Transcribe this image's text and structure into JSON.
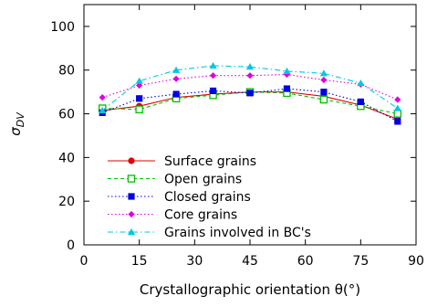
{
  "chart_data": {
    "type": "line",
    "xlabel": "Crystallographic orientation θ(°)",
    "ylabel": "σ_DV",
    "ylabel_main": "σ",
    "ylabel_sub": "DV",
    "xlim": [
      0,
      90
    ],
    "ylim": [
      0,
      110
    ],
    "x_ticks": [
      0,
      15,
      30,
      45,
      60,
      75,
      90
    ],
    "y_ticks": [
      0,
      20,
      40,
      60,
      80,
      100
    ],
    "grid": false,
    "legend_position": "bottom-left",
    "x": [
      5,
      15,
      25,
      35,
      45,
      55,
      65,
      75,
      85
    ],
    "series": [
      {
        "name": "Surface grains",
        "marker": "circle",
        "color": "#e00000",
        "dash": "solid",
        "values": [
          61.5,
          63.5,
          67.5,
          69.0,
          70.0,
          70.0,
          68.0,
          64.0,
          57.5
        ]
      },
      {
        "name": "Open grains",
        "marker": "square-open",
        "color": "#00c000",
        "dash": "dashed",
        "values": [
          62.5,
          62.0,
          67.0,
          68.5,
          70.0,
          69.5,
          66.5,
          63.5,
          60.0
        ]
      },
      {
        "name": "Closed grains",
        "marker": "square",
        "color": "#0000e0",
        "dash": "dotted",
        "values": [
          60.5,
          67.0,
          69.0,
          70.5,
          69.5,
          71.5,
          70.0,
          65.5,
          56.5
        ]
      },
      {
        "name": "Core grains",
        "marker": "diamond",
        "color": "#e000e0",
        "dash": "dotted",
        "values": [
          67.5,
          73.0,
          76.0,
          77.5,
          77.5,
          78.0,
          75.5,
          73.5,
          66.5
        ]
      },
      {
        "name": "Grains involved in BC's",
        "marker": "triangle",
        "color": "#00c8e0",
        "dash": "dashdot",
        "values": [
          61.5,
          75.0,
          80.0,
          82.0,
          81.5,
          79.5,
          78.5,
          74.0,
          62.5
        ]
      }
    ]
  }
}
